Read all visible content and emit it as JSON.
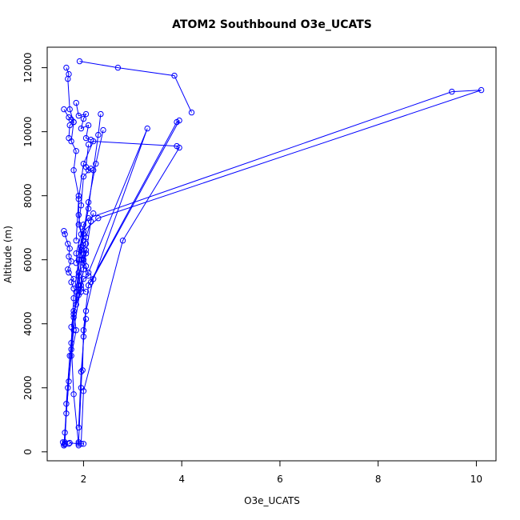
{
  "chart_data": {
    "type": "line",
    "title": "ATOM2 Southbound O3e_UCATS",
    "xlabel": "O3e_UCATS",
    "ylabel": "Altitude (m)",
    "xlim": [
      1.26,
      10.4
    ],
    "ylim": [
      -280,
      12640
    ],
    "xticks": [
      2,
      4,
      6,
      8,
      10
    ],
    "yticks": [
      0,
      2000,
      4000,
      6000,
      8000,
      10000,
      12000
    ],
    "grid": false,
    "legend": "none",
    "series_color": "#0000ff",
    "marker": "open-circle",
    "series": [
      {
        "name": "",
        "points": [
          [
            1.92,
            12200
          ],
          [
            2.7,
            12000
          ],
          [
            3.85,
            11750
          ],
          [
            4.2,
            10600
          ]
        ]
      },
      {
        "name": "",
        "points": [
          [
            1.65,
            12000
          ],
          [
            1.7,
            11800
          ],
          [
            1.68,
            11650
          ],
          [
            1.72,
            10700
          ],
          [
            1.8,
            10300
          ],
          [
            1.75,
            9700
          ],
          [
            1.85,
            9400
          ],
          [
            1.8,
            8800
          ],
          [
            1.9,
            8000
          ],
          [
            1.9,
            7400
          ],
          [
            1.95,
            6800
          ],
          [
            1.85,
            6200
          ],
          [
            1.9,
            5600
          ],
          [
            1.95,
            5000
          ],
          [
            1.8,
            4400
          ],
          [
            1.85,
            3800
          ],
          [
            1.75,
            3000
          ],
          [
            1.7,
            2200
          ],
          [
            1.65,
            1200
          ],
          [
            1.62,
            300
          ]
        ]
      },
      {
        "name": "",
        "points": [
          [
            1.62,
            230
          ],
          [
            1.65,
            1500
          ],
          [
            1.72,
            3000
          ],
          [
            1.8,
            4200
          ],
          [
            1.9,
            5200
          ],
          [
            1.95,
            6000
          ],
          [
            2.0,
            6800
          ],
          [
            2.1,
            7600
          ],
          [
            2.2,
            8800
          ],
          [
            2.3,
            9900
          ],
          [
            2.35,
            10550
          ]
        ]
      },
      {
        "name": "",
        "points": [
          [
            2.4,
            10050
          ],
          [
            2.25,
            9000
          ],
          [
            2.1,
            7800
          ],
          [
            1.95,
            6400
          ],
          [
            1.85,
            5000
          ],
          [
            1.75,
            3200
          ],
          [
            1.62,
            600
          ]
        ]
      },
      {
        "name": "",
        "points": [
          [
            1.6,
            200
          ],
          [
            1.68,
            2000
          ],
          [
            1.8,
            3800
          ],
          [
            1.95,
            5200
          ],
          [
            2.05,
            6200
          ],
          [
            2.15,
            7200
          ],
          [
            2.2,
            7450
          ],
          [
            2.05,
            6700
          ],
          [
            2.0,
            6000
          ]
        ]
      },
      {
        "name": "",
        "points": [
          [
            1.9,
            300
          ],
          [
            1.95,
            2000
          ],
          [
            2.0,
            3600
          ],
          [
            2.05,
            4150
          ]
        ]
      },
      {
        "name": "",
        "points": [
          [
            1.9,
            200
          ],
          [
            1.8,
            1800
          ],
          [
            1.75,
            3400
          ],
          [
            1.8,
            4800
          ],
          [
            1.9,
            6000
          ],
          [
            2.0,
            7100
          ],
          [
            2.1,
            7300
          ],
          [
            9.5,
            11250
          ],
          [
            10.1,
            11300
          ],
          [
            2.3,
            7300
          ],
          [
            2.0,
            6900
          ],
          [
            1.85,
            5900
          ]
        ]
      },
      {
        "name": "",
        "points": [
          [
            1.9,
            760
          ],
          [
            1.95,
            2500
          ],
          [
            2.05,
            4400
          ],
          [
            2.2,
            5400
          ],
          [
            3.3,
            10100
          ],
          [
            2.1,
            5600
          ]
        ]
      },
      {
        "name": "",
        "points": [
          [
            1.98,
            2550
          ],
          [
            2.0,
            3800
          ],
          [
            2.1,
            5200
          ],
          [
            3.9,
            10300
          ],
          [
            3.95,
            10350
          ],
          [
            2.15,
            5300
          ]
        ]
      },
      {
        "name": "",
        "points": [
          [
            1.95,
            250
          ],
          [
            2.0,
            1900
          ],
          [
            2.8,
            6600
          ],
          [
            3.95,
            9500
          ],
          [
            3.9,
            9550
          ],
          [
            2.2,
            9700
          ],
          [
            2.0,
            9000
          ],
          [
            1.9,
            7900
          ],
          [
            1.85,
            6600
          ]
        ]
      },
      {
        "name": "",
        "points": [
          [
            1.85,
            10900
          ],
          [
            1.9,
            10500
          ],
          [
            2.05,
            10550
          ],
          [
            2.0,
            10400
          ],
          [
            1.95,
            10100
          ],
          [
            2.1,
            10200
          ],
          [
            2.05,
            9800
          ],
          [
            2.15,
            9750
          ]
        ]
      },
      {
        "name": "",
        "points": [
          [
            1.6,
            10700
          ],
          [
            1.7,
            10450
          ],
          [
            1.75,
            10380
          ],
          [
            1.8,
            10300
          ],
          [
            1.72,
            10200
          ],
          [
            1.7,
            9800
          ]
        ]
      },
      {
        "name": "",
        "points": [
          [
            1.6,
            6900
          ],
          [
            1.62,
            6800
          ],
          [
            1.68,
            6500
          ],
          [
            1.72,
            6350
          ],
          [
            1.7,
            6100
          ],
          [
            1.75,
            5950
          ],
          [
            1.68,
            5700
          ],
          [
            1.7,
            5600
          ],
          [
            1.8,
            5400
          ],
          [
            1.75,
            5300
          ],
          [
            1.8,
            5100
          ]
        ]
      },
      {
        "name": "",
        "points": [
          [
            1.7,
            250
          ],
          [
            1.72,
            280
          ],
          [
            1.9,
            250
          ],
          [
            2.0,
            250
          ]
        ]
      },
      {
        "name": "",
        "points": [
          [
            1.6,
            200
          ],
          [
            1.62,
            260
          ],
          [
            1.58,
            300
          ]
        ]
      },
      {
        "name": "",
        "points": [
          [
            1.85,
            4600
          ],
          [
            1.9,
            5500
          ],
          [
            2.0,
            6200
          ],
          [
            2.05,
            6300
          ],
          [
            2.0,
            5900
          ],
          [
            2.05,
            5800
          ],
          [
            2.1,
            5500
          ],
          [
            2.0,
            5400
          ],
          [
            1.95,
            5100
          ],
          [
            2.05,
            5000
          ]
        ]
      },
      {
        "name": "",
        "points": [
          [
            2.1,
            9600
          ],
          [
            2.05,
            8900
          ],
          [
            2.1,
            8800
          ],
          [
            2.15,
            8850
          ],
          [
            2.0,
            8600
          ],
          [
            1.95,
            7700
          ],
          [
            1.9,
            7100
          ],
          [
            2.0,
            6600
          ]
        ]
      },
      {
        "name": "",
        "points": [
          [
            1.75,
            3900
          ],
          [
            1.8,
            4300
          ],
          [
            1.9,
            4900
          ],
          [
            2.0,
            5700
          ],
          [
            1.95,
            6300
          ],
          [
            2.05,
            6500
          ]
        ]
      }
    ]
  }
}
